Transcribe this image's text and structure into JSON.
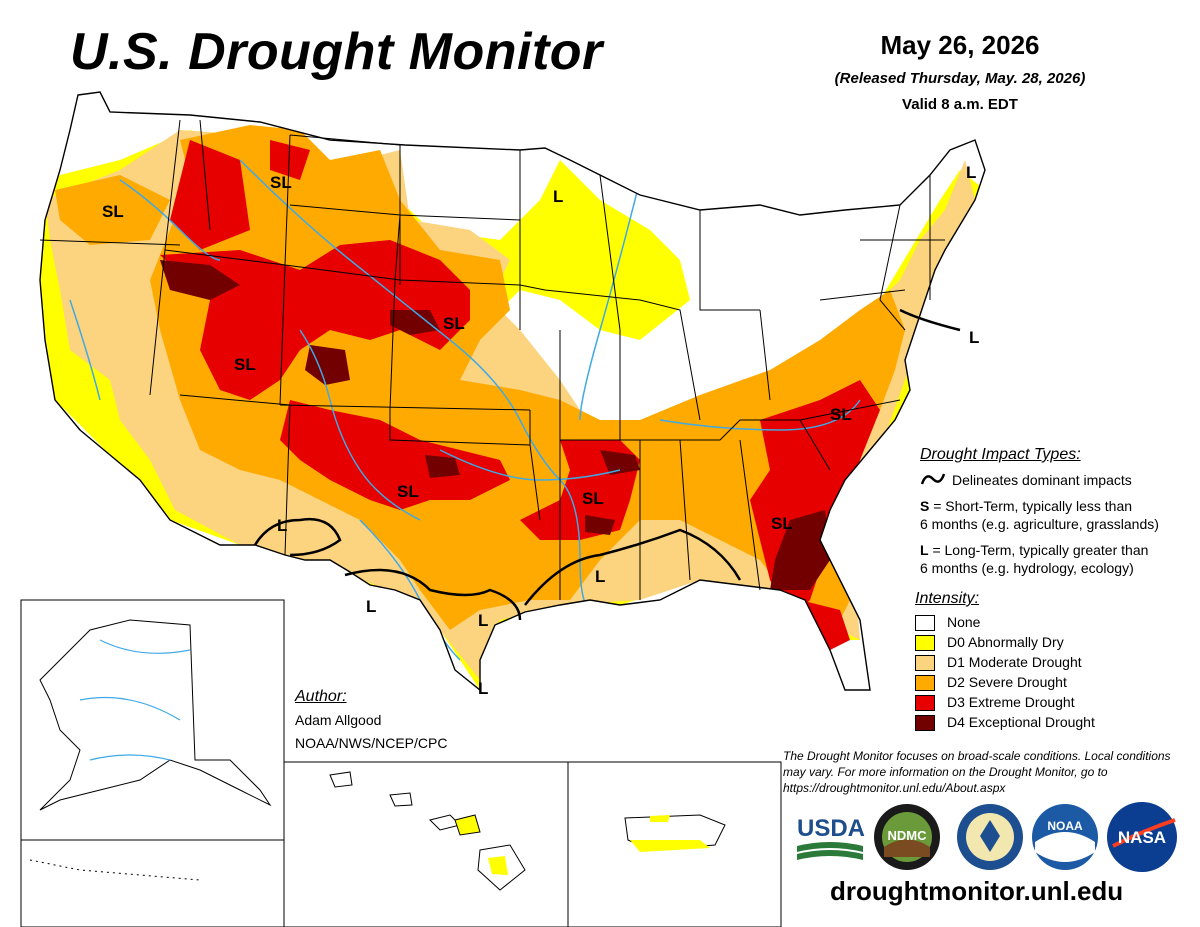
{
  "header": {
    "title": "U.S. Drought Monitor",
    "date": "May 26, 2026",
    "released": "(Released Thursday, May. 28, 2026)",
    "valid": "Valid 8 a.m. EDT"
  },
  "map_labels": [
    {
      "text": "SL",
      "region": "Oregon"
    },
    {
      "text": "SL",
      "region": "Montana"
    },
    {
      "text": "L",
      "region": "Minnesota"
    },
    {
      "text": "L",
      "region": "Maine"
    },
    {
      "text": "SL",
      "region": "Utah"
    },
    {
      "text": "SL",
      "region": "South Dakota"
    },
    {
      "text": "L",
      "region": "New Jersey"
    },
    {
      "text": "SL",
      "region": "Virginia"
    },
    {
      "text": "SL",
      "region": "Oklahoma"
    },
    {
      "text": "SL",
      "region": "Arkansas"
    },
    {
      "text": "SL",
      "region": "Georgia"
    },
    {
      "text": "L",
      "region": "Arizona"
    },
    {
      "text": "L",
      "region": "Mississippi"
    },
    {
      "text": "L",
      "region": "West Texas"
    },
    {
      "text": "L",
      "region": "Central Texas"
    },
    {
      "text": "L",
      "region": "South Texas"
    }
  ],
  "impact_legend": {
    "heading": "Drought Impact Types:",
    "line_desc": "Delineates dominant impacts",
    "s_key": "S",
    "s_desc": " = Short-Term, typically less than",
    "s_desc2": "6 months (e.g. agriculture, grasslands)",
    "l_key": "L",
    "l_desc": " = Long-Term, typically greater than",
    "l_desc2": "6 months (e.g. hydrology, ecology)"
  },
  "intensity_legend": {
    "heading": "Intensity:",
    "items": [
      {
        "label": "None",
        "color": "#ffffff"
      },
      {
        "label": "D0 Abnormally Dry",
        "color": "#ffff00"
      },
      {
        "label": "D1 Moderate Drought",
        "color": "#fcd37f"
      },
      {
        "label": "D2 Severe Drought",
        "color": "#ffaa00"
      },
      {
        "label": "D3 Extreme Drought",
        "color": "#e60000"
      },
      {
        "label": "D4 Exceptional Drought",
        "color": "#730000"
      }
    ]
  },
  "author": {
    "heading": "Author:",
    "name": "Adam Allgood",
    "org": "NOAA/NWS/NCEP/CPC"
  },
  "disclaimer": "The Drought Monitor focuses on broad-scale conditions. Local conditions may vary. For more information on the Drought Monitor, go to https://droughtmonitor.unl.edu/About.aspx",
  "logos": {
    "usda": "USDA",
    "ndmc": "NDMC",
    "noaa": "NOAA",
    "nasa": "NASA"
  },
  "url": "droughtmonitor.unl.edu",
  "colors": {
    "d0": "#ffff00",
    "d1": "#fcd37f",
    "d2": "#ffaa00",
    "d3": "#e60000",
    "d4": "#730000",
    "water": "#3fa9e6"
  }
}
